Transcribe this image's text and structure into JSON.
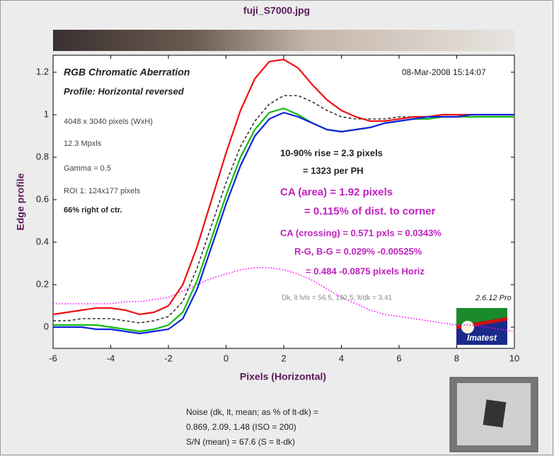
{
  "chart_data": {
    "type": "line",
    "title": "fuji_S7000.jpg",
    "x_label": "Pixels (Horizontal)",
    "y_label": "Edge profile",
    "xlim": [
      -6,
      10
    ],
    "ylim": [
      -0.1,
      1.28
    ],
    "xticks": [
      -6,
      -4,
      -2,
      0,
      2,
      4,
      6,
      8,
      10
    ],
    "yticks": [
      0,
      0.2,
      0.4,
      0.6,
      0.8,
      1,
      1.2
    ],
    "grid": false,
    "x": [
      -6,
      -5.5,
      -5,
      -4.5,
      -4,
      -3.5,
      -3,
      -2.5,
      -2,
      -1.5,
      -1,
      -0.5,
      0,
      0.5,
      1,
      1.5,
      2,
      2.5,
      3,
      3.5,
      4,
      4.5,
      5,
      5.5,
      6,
      6.5,
      7,
      7.5,
      8,
      8.5,
      9,
      9.5,
      10
    ],
    "series": [
      {
        "color": "#ff00ff",
        "style": "dotted",
        "values": [
          0.11,
          0.11,
          0.11,
          0.11,
          0.11,
          0.12,
          0.12,
          0.13,
          0.14,
          0.17,
          0.2,
          0.23,
          0.25,
          0.27,
          0.28,
          0.28,
          0.27,
          0.25,
          0.22,
          0.18,
          0.14,
          0.11,
          0.08,
          0.06,
          0.05,
          0.04,
          0.03,
          0.02,
          0.01,
          0.01,
          0,
          -0.01,
          -0.02
        ]
      },
      {
        "color": "#333333",
        "style": "dashed",
        "values": [
          0.03,
          0.03,
          0.04,
          0.04,
          0.04,
          0.03,
          0.02,
          0.03,
          0.05,
          0.12,
          0.28,
          0.48,
          0.68,
          0.85,
          0.97,
          1.05,
          1.09,
          1.09,
          1.06,
          1.02,
          0.99,
          0.98,
          0.98,
          0.98,
          0.99,
          0.99,
          0.99,
          1,
          1,
          1,
          1,
          1,
          1
        ]
      },
      {
        "color": "#ee1111",
        "style": "solid",
        "values": [
          0.06,
          0.07,
          0.08,
          0.09,
          0.09,
          0.08,
          0.06,
          0.07,
          0.1,
          0.2,
          0.38,
          0.6,
          0.82,
          1.02,
          1.17,
          1.25,
          1.26,
          1.22,
          1.14,
          1.07,
          1.02,
          0.99,
          0.97,
          0.97,
          0.98,
          0.99,
          0.99,
          1,
          1,
          1,
          1,
          1,
          1
        ]
      },
      {
        "color": "#11bb11",
        "style": "solid",
        "values": [
          0.01,
          0.01,
          0.01,
          0.01,
          0,
          -0.01,
          -0.02,
          -0.01,
          0.01,
          0.07,
          0.22,
          0.42,
          0.62,
          0.8,
          0.93,
          1.01,
          1.03,
          1,
          0.96,
          0.93,
          0.92,
          0.93,
          0.94,
          0.96,
          0.97,
          0.98,
          0.98,
          0.99,
          0.99,
          0.99,
          0.99,
          0.99,
          0.99
        ]
      },
      {
        "color": "#1122dd",
        "style": "solid",
        "values": [
          0,
          0,
          0,
          -0.01,
          -0.01,
          -0.02,
          -0.03,
          -0.02,
          -0.01,
          0.04,
          0.18,
          0.38,
          0.58,
          0.76,
          0.9,
          0.98,
          1.01,
          0.99,
          0.96,
          0.93,
          0.92,
          0.93,
          0.94,
          0.96,
          0.97,
          0.98,
          0.99,
          0.99,
          0.99,
          1,
          1,
          1,
          1
        ]
      }
    ],
    "annotations": [
      "RGB Chromatic Aberration",
      "Profile: Horizontal reversed",
      "08-Mar-2008 15:14:07",
      "4048 x 3040 pixels (WxH)",
      "12.3 Mpxls",
      "Gamma = 0.5",
      "ROI 1: 124x177 pixels",
      "66% right of ctr.",
      "10-90% rise = 2.3 pixels",
      "= 1323 per PH",
      "CA (area) = 1.92 pixels",
      "= 0.115% of dist. to corner",
      "CA (crossing) = 0.571 pxls = 0.0343%",
      "R-G, B-G = 0.029%  -0.00525%",
      "= 0.484  -0.0875 pixels Horiz",
      "Dk, lt lvls = 56.5, 192.5;  lt/dk = 3.41",
      "2.6.12  Pro",
      "Imatest",
      "Noise (dk, lt, mean; as % of lt-dk) =",
      "0.869,  2.09,  1.48  (ISO =  200)",
      "S/N (mean) = 67.6  (S = lt-dk)"
    ]
  }
}
